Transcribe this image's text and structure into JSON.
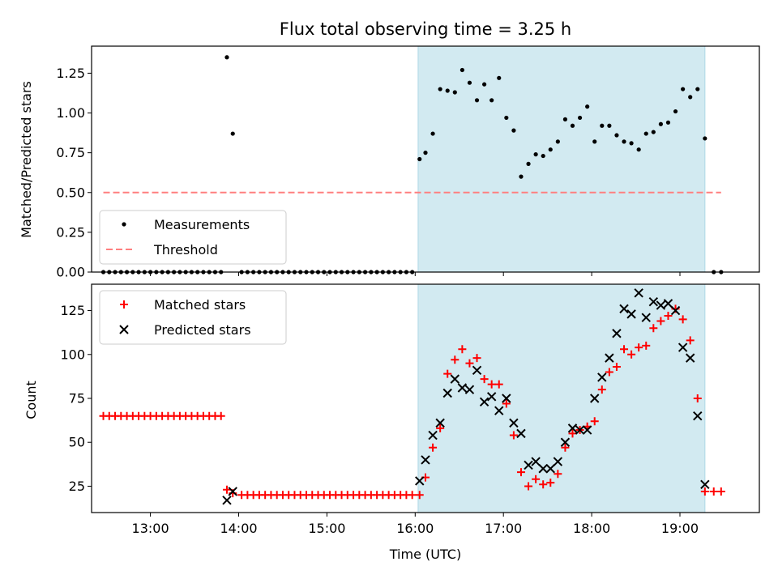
{
  "chart_data": {
    "title": "Flux total observing time = 3.25 h",
    "xlabel": "Time (UTC)",
    "x_ticks": [
      "13:00",
      "14:00",
      "15:00",
      "16:00",
      "17:00",
      "18:00",
      "19:00"
    ],
    "xlim": [
      "12:20",
      "19:54"
    ],
    "shaded_region": [
      "16:02",
      "19:17"
    ],
    "shaded_color": "#add8e6",
    "panels": [
      {
        "type": "scatter",
        "ylabel": "Matched/Predicted stars",
        "ylim": [
          0,
          1.42
        ],
        "yticks": [
          "0.00",
          "0.25",
          "0.50",
          "0.75",
          "1.00",
          "1.25"
        ],
        "legend_position": "lower-left",
        "series": [
          {
            "name": "Measurements",
            "marker": "dot",
            "color": "#000000",
            "points": [
              [
                "12:28",
                0
              ],
              [
                "12:32",
                0
              ],
              [
                "12:36",
                0
              ],
              [
                "12:40",
                0
              ],
              [
                "12:44",
                0
              ],
              [
                "12:48",
                0
              ],
              [
                "12:52",
                0
              ],
              [
                "12:56",
                0
              ],
              [
                "13:00",
                0
              ],
              [
                "13:04",
                0
              ],
              [
                "13:08",
                0
              ],
              [
                "13:12",
                0
              ],
              [
                "13:16",
                0
              ],
              [
                "13:20",
                0
              ],
              [
                "13:24",
                0
              ],
              [
                "13:28",
                0
              ],
              [
                "13:32",
                0
              ],
              [
                "13:36",
                0
              ],
              [
                "13:40",
                0
              ],
              [
                "13:44",
                0
              ],
              [
                "13:48",
                0
              ],
              [
                "13:52",
                1.35
              ],
              [
                "13:56",
                0.87
              ],
              [
                "14:02",
                0
              ],
              [
                "14:06",
                0
              ],
              [
                "14:10",
                0
              ],
              [
                "14:14",
                0
              ],
              [
                "14:18",
                0
              ],
              [
                "14:22",
                0
              ],
              [
                "14:26",
                0
              ],
              [
                "14:30",
                0
              ],
              [
                "14:34",
                0
              ],
              [
                "14:38",
                0
              ],
              [
                "14:42",
                0
              ],
              [
                "14:46",
                0
              ],
              [
                "14:50",
                0
              ],
              [
                "14:54",
                0
              ],
              [
                "14:58",
                0
              ],
              [
                "15:02",
                0
              ],
              [
                "15:06",
                0
              ],
              [
                "15:10",
                0
              ],
              [
                "15:14",
                0
              ],
              [
                "15:18",
                0
              ],
              [
                "15:22",
                0
              ],
              [
                "15:26",
                0
              ],
              [
                "15:30",
                0
              ],
              [
                "15:34",
                0
              ],
              [
                "15:38",
                0
              ],
              [
                "15:42",
                0
              ],
              [
                "15:46",
                0
              ],
              [
                "15:50",
                0
              ],
              [
                "15:54",
                0
              ],
              [
                "15:58",
                0
              ],
              [
                "16:03",
                0.71
              ],
              [
                "16:07",
                0.75
              ],
              [
                "16:12",
                0.87
              ],
              [
                "16:17",
                1.15
              ],
              [
                "16:22",
                1.14
              ],
              [
                "16:27",
                1.13
              ],
              [
                "16:32",
                1.27
              ],
              [
                "16:37",
                1.19
              ],
              [
                "16:42",
                1.08
              ],
              [
                "16:47",
                1.18
              ],
              [
                "16:52",
                1.08
              ],
              [
                "16:57",
                1.22
              ],
              [
                "17:02",
                0.97
              ],
              [
                "17:07",
                0.89
              ],
              [
                "17:12",
                0.6
              ],
              [
                "17:17",
                0.68
              ],
              [
                "17:22",
                0.74
              ],
              [
                "17:27",
                0.73
              ],
              [
                "17:32",
                0.77
              ],
              [
                "17:37",
                0.82
              ],
              [
                "17:42",
                0.96
              ],
              [
                "17:47",
                0.92
              ],
              [
                "17:52",
                0.97
              ],
              [
                "17:57",
                1.04
              ],
              [
                "18:02",
                0.82
              ],
              [
                "18:07",
                0.92
              ],
              [
                "18:12",
                0.92
              ],
              [
                "18:17",
                0.86
              ],
              [
                "18:22",
                0.82
              ],
              [
                "18:27",
                0.81
              ],
              [
                "18:32",
                0.77
              ],
              [
                "18:37",
                0.87
              ],
              [
                "18:42",
                0.88
              ],
              [
                "18:47",
                0.93
              ],
              [
                "18:52",
                0.94
              ],
              [
                "18:57",
                1.01
              ],
              [
                "19:02",
                1.15
              ],
              [
                "19:07",
                1.1
              ],
              [
                "19:12",
                1.15
              ],
              [
                "19:17",
                0.84
              ],
              [
                "19:23",
                0
              ],
              [
                "19:28",
                0
              ]
            ]
          },
          {
            "name": "Threshold",
            "marker": "dashed-line",
            "color": "#ff7f7f",
            "points": [
              [
                "12:28",
                0.5
              ],
              [
                "19:28",
                0.5
              ]
            ]
          }
        ]
      },
      {
        "type": "scatter",
        "ylabel": "Count",
        "ylim": [
          10,
          140
        ],
        "yticks": [
          "25",
          "50",
          "75",
          "100",
          "125"
        ],
        "legend_position": "upper-left",
        "series": [
          {
            "name": "Matched stars",
            "marker": "plus",
            "color": "#ff0000",
            "points": [
              [
                "12:28",
                65
              ],
              [
                "12:32",
                65
              ],
              [
                "12:36",
                65
              ],
              [
                "12:40",
                65
              ],
              [
                "12:44",
                65
              ],
              [
                "12:48",
                65
              ],
              [
                "12:52",
                65
              ],
              [
                "12:56",
                65
              ],
              [
                "13:00",
                65
              ],
              [
                "13:04",
                65
              ],
              [
                "13:08",
                65
              ],
              [
                "13:12",
                65
              ],
              [
                "13:16",
                65
              ],
              [
                "13:20",
                65
              ],
              [
                "13:24",
                65
              ],
              [
                "13:28",
                65
              ],
              [
                "13:32",
                65
              ],
              [
                "13:36",
                65
              ],
              [
                "13:40",
                65
              ],
              [
                "13:44",
                65
              ],
              [
                "13:48",
                65
              ],
              [
                "13:52",
                23
              ],
              [
                "13:56",
                21
              ],
              [
                "14:02",
                20
              ],
              [
                "14:06",
                20
              ],
              [
                "14:10",
                20
              ],
              [
                "14:14",
                20
              ],
              [
                "14:18",
                20
              ],
              [
                "14:22",
                20
              ],
              [
                "14:26",
                20
              ],
              [
                "14:30",
                20
              ],
              [
                "14:34",
                20
              ],
              [
                "14:38",
                20
              ],
              [
                "14:42",
                20
              ],
              [
                "14:46",
                20
              ],
              [
                "14:50",
                20
              ],
              [
                "14:54",
                20
              ],
              [
                "14:58",
                20
              ],
              [
                "15:02",
                20
              ],
              [
                "15:06",
                20
              ],
              [
                "15:10",
                20
              ],
              [
                "15:14",
                20
              ],
              [
                "15:18",
                20
              ],
              [
                "15:22",
                20
              ],
              [
                "15:26",
                20
              ],
              [
                "15:30",
                20
              ],
              [
                "15:34",
                20
              ],
              [
                "15:38",
                20
              ],
              [
                "15:42",
                20
              ],
              [
                "15:46",
                20
              ],
              [
                "15:50",
                20
              ],
              [
                "15:54",
                20
              ],
              [
                "15:58",
                20
              ],
              [
                "16:03",
                20
              ],
              [
                "16:07",
                30
              ],
              [
                "16:12",
                47
              ],
              [
                "16:17",
                58
              ],
              [
                "16:22",
                89
              ],
              [
                "16:27",
                97
              ],
              [
                "16:32",
                103
              ],
              [
                "16:37",
                95
              ],
              [
                "16:42",
                98
              ],
              [
                "16:47",
                86
              ],
              [
                "16:52",
                83
              ],
              [
                "16:57",
                83
              ],
              [
                "17:02",
                72
              ],
              [
                "17:07",
                54
              ],
              [
                "17:12",
                33
              ],
              [
                "17:17",
                25
              ],
              [
                "17:22",
                29
              ],
              [
                "17:27",
                26
              ],
              [
                "17:32",
                27
              ],
              [
                "17:37",
                32
              ],
              [
                "17:42",
                47
              ],
              [
                "17:47",
                55
              ],
              [
                "17:52",
                57
              ],
              [
                "17:57",
                59
              ],
              [
                "18:02",
                62
              ],
              [
                "18:07",
                80
              ],
              [
                "18:12",
                90
              ],
              [
                "18:17",
                93
              ],
              [
                "18:22",
                103
              ],
              [
                "18:27",
                100
              ],
              [
                "18:32",
                104
              ],
              [
                "18:37",
                105
              ],
              [
                "18:42",
                115
              ],
              [
                "18:47",
                119
              ],
              [
                "18:52",
                122
              ],
              [
                "18:57",
                126
              ],
              [
                "19:02",
                120
              ],
              [
                "19:07",
                108
              ],
              [
                "19:12",
                75
              ],
              [
                "19:17",
                22
              ],
              [
                "19:23",
                22
              ],
              [
                "19:28",
                22
              ]
            ]
          },
          {
            "name": "Predicted stars",
            "marker": "x",
            "color": "#000000",
            "points": [
              [
                "13:52",
                17
              ],
              [
                "13:56",
                22
              ],
              [
                "16:03",
                28
              ],
              [
                "16:07",
                40
              ],
              [
                "16:12",
                54
              ],
              [
                "16:17",
                61
              ],
              [
                "16:22",
                78
              ],
              [
                "16:27",
                86
              ],
              [
                "16:32",
                81
              ],
              [
                "16:37",
                80
              ],
              [
                "16:42",
                91
              ],
              [
                "16:47",
                73
              ],
              [
                "16:52",
                76
              ],
              [
                "16:57",
                68
              ],
              [
                "17:02",
                75
              ],
              [
                "17:07",
                61
              ],
              [
                "17:12",
                55
              ],
              [
                "17:17",
                37
              ],
              [
                "17:22",
                39
              ],
              [
                "17:27",
                35
              ],
              [
                "17:32",
                35
              ],
              [
                "17:37",
                39
              ],
              [
                "17:42",
                50
              ],
              [
                "17:47",
                58
              ],
              [
                "17:52",
                57
              ],
              [
                "17:57",
                57
              ],
              [
                "18:02",
                75
              ],
              [
                "18:07",
                87
              ],
              [
                "18:12",
                98
              ],
              [
                "18:17",
                112
              ],
              [
                "18:22",
                126
              ],
              [
                "18:27",
                123
              ],
              [
                "18:32",
                135
              ],
              [
                "18:37",
                121
              ],
              [
                "18:42",
                130
              ],
              [
                "18:47",
                128
              ],
              [
                "18:52",
                129
              ],
              [
                "18:57",
                125
              ],
              [
                "19:02",
                104
              ],
              [
                "19:07",
                98
              ],
              [
                "19:12",
                65
              ],
              [
                "19:17",
                26
              ]
            ]
          }
        ]
      }
    ]
  }
}
